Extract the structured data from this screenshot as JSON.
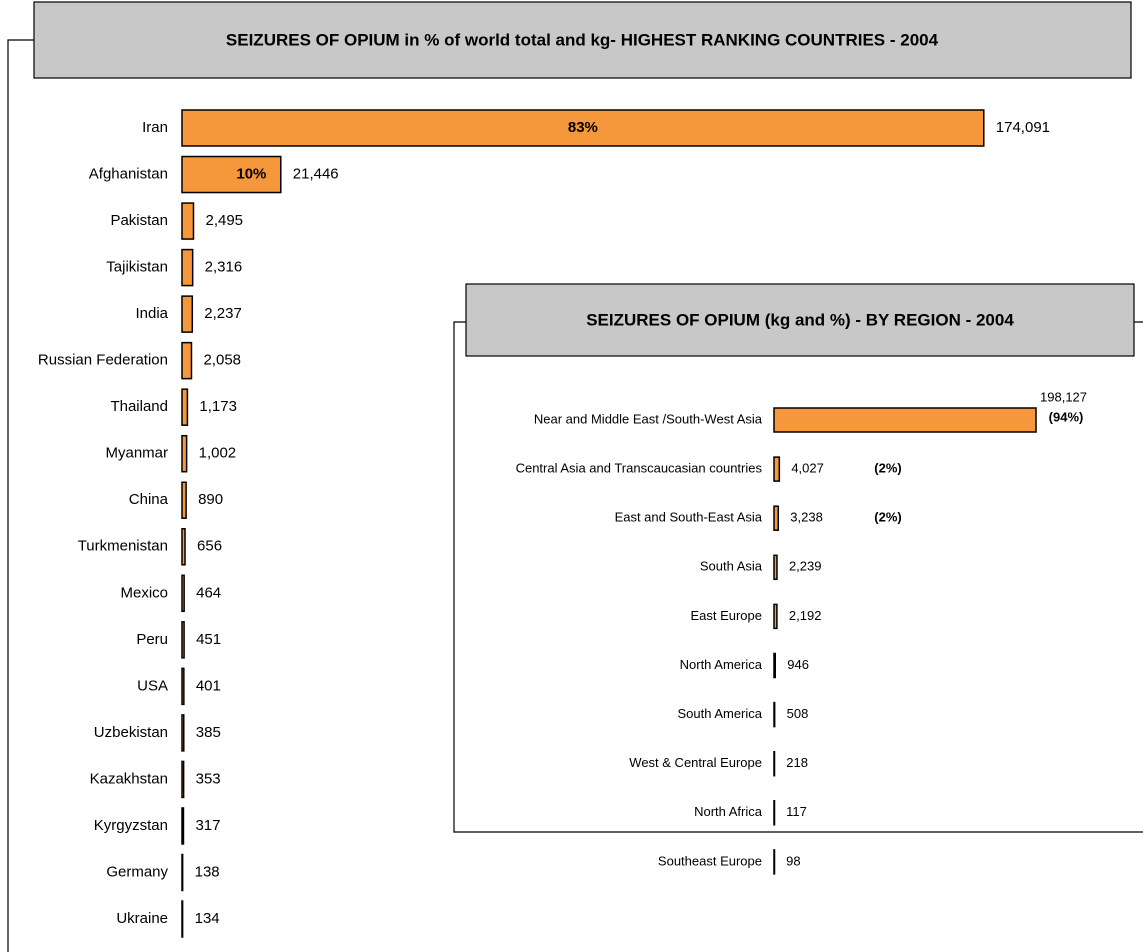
{
  "chart_data": [
    {
      "type": "bar",
      "orientation": "horizontal",
      "title": "SEIZURES OF OPIUM in % of world total and kg- HIGHEST RANKING COUNTRIES - 2004",
      "categories": [
        "Iran",
        "Afghanistan",
        "Pakistan",
        "Tajikistan",
        "India",
        "Russian Federation",
        "Thailand",
        "Myanmar",
        "China",
        "Turkmenistan",
        "Mexico",
        "Peru",
        "USA",
        "Uzbekistan",
        "Kazakhstan",
        "Kyrgyzstan",
        "Germany",
        "Ukraine"
      ],
      "values": [
        174091,
        21446,
        2495,
        2316,
        2237,
        2058,
        1173,
        1002,
        890,
        656,
        464,
        451,
        401,
        385,
        353,
        317,
        138,
        134
      ],
      "value_labels": [
        "174,091",
        "21,446",
        "2,495",
        "2,316",
        "2,237",
        "2,058",
        "1,173",
        "1,002",
        "890",
        "656",
        "464",
        "451",
        "401",
        "385",
        "353",
        "317",
        "138",
        "134"
      ],
      "shares": [
        83,
        10,
        null,
        null,
        null,
        null,
        null,
        null,
        null,
        null,
        null,
        null,
        null,
        null,
        null,
        null,
        null,
        null
      ],
      "share_labels": [
        "83%",
        "10%",
        null,
        null,
        null,
        null,
        null,
        null,
        null,
        null,
        null,
        null,
        null,
        null,
        null,
        null,
        null,
        null
      ],
      "xlim": [
        0,
        180000
      ],
      "color": "#f5973b"
    },
    {
      "type": "bar",
      "orientation": "horizontal",
      "title": "SEIZURES OF OPIUM (kg and %) - BY REGION - 2004",
      "categories": [
        "Near and Middle East /South-West Asia",
        "Central Asia  and Transcaucasian countries",
        "East and South-East Asia",
        "South Asia",
        "East Europe",
        "North America",
        "South America",
        "West & Central Europe",
        "North Africa",
        "Southeast Europe"
      ],
      "values": [
        198127,
        4027,
        3238,
        2239,
        2192,
        946,
        508,
        218,
        117,
        98
      ],
      "value_labels": [
        "198,127",
        "4,027",
        "3,238",
        "2,239",
        "2,192",
        "946",
        "508",
        "218",
        "117",
        "98"
      ],
      "shares": [
        94,
        2,
        2,
        null,
        null,
        null,
        null,
        null,
        null,
        null
      ],
      "share_labels": [
        "(94%)",
        "(2%)",
        "(2%)",
        null,
        null,
        null,
        null,
        null,
        null,
        null
      ],
      "xlim": [
        0,
        200000
      ],
      "color": "#f5973b"
    }
  ]
}
